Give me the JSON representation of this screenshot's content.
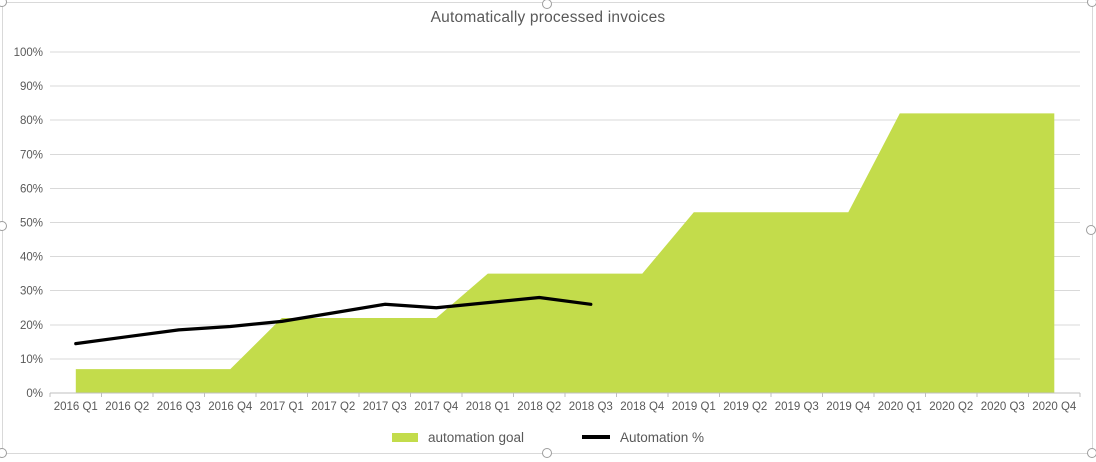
{
  "window": {
    "background": "#FFFFFF",
    "frame_border_color": "#D9D9D9"
  },
  "chart_data": {
    "type": "combo",
    "title": "Automatically processed invoices",
    "categories": [
      "2016 Q1",
      "2016 Q2",
      "2016 Q3",
      "2016 Q4",
      "2017 Q1",
      "2017 Q2",
      "2017 Q3",
      "2017 Q4",
      "2018 Q1",
      "2018 Q2",
      "2018 Q3",
      "2018 Q4",
      "2019 Q1",
      "2019 Q2",
      "2019 Q3",
      "2019 Q4",
      "2020 Q1",
      "2020 Q2",
      "2020 Q3",
      "2020 Q4"
    ],
    "series": [
      {
        "name": "automation goal",
        "type": "area",
        "color": "#C3DC4B",
        "values": [
          7,
          7,
          7,
          7,
          22,
          22,
          22,
          22,
          35,
          35,
          35,
          35,
          53,
          53,
          53,
          53,
          82,
          82,
          82,
          82
        ]
      },
      {
        "name": "Automation %",
        "type": "line",
        "color": "#000000",
        "values": [
          14.5,
          16.5,
          18.5,
          19.5,
          21,
          23.5,
          26,
          25,
          26.5,
          28,
          26,
          null,
          null,
          null,
          null,
          null,
          null,
          null,
          null,
          null
        ]
      }
    ],
    "ylim": [
      0,
      100
    ],
    "ytick_step": 10,
    "ytick_labels": [
      "0%",
      "10%",
      "20%",
      "30%",
      "40%",
      "50%",
      "60%",
      "70%",
      "80%",
      "90%",
      "100%"
    ],
    "ytick_format": "percent",
    "grid": "horizontal",
    "legend_position": "bottom",
    "axis_style": {
      "gridline_color": "#D9D9D9",
      "axis_line_color": "#BFBFBF",
      "tick_color": "#BFBFBF",
      "label_color": "#595959"
    }
  }
}
